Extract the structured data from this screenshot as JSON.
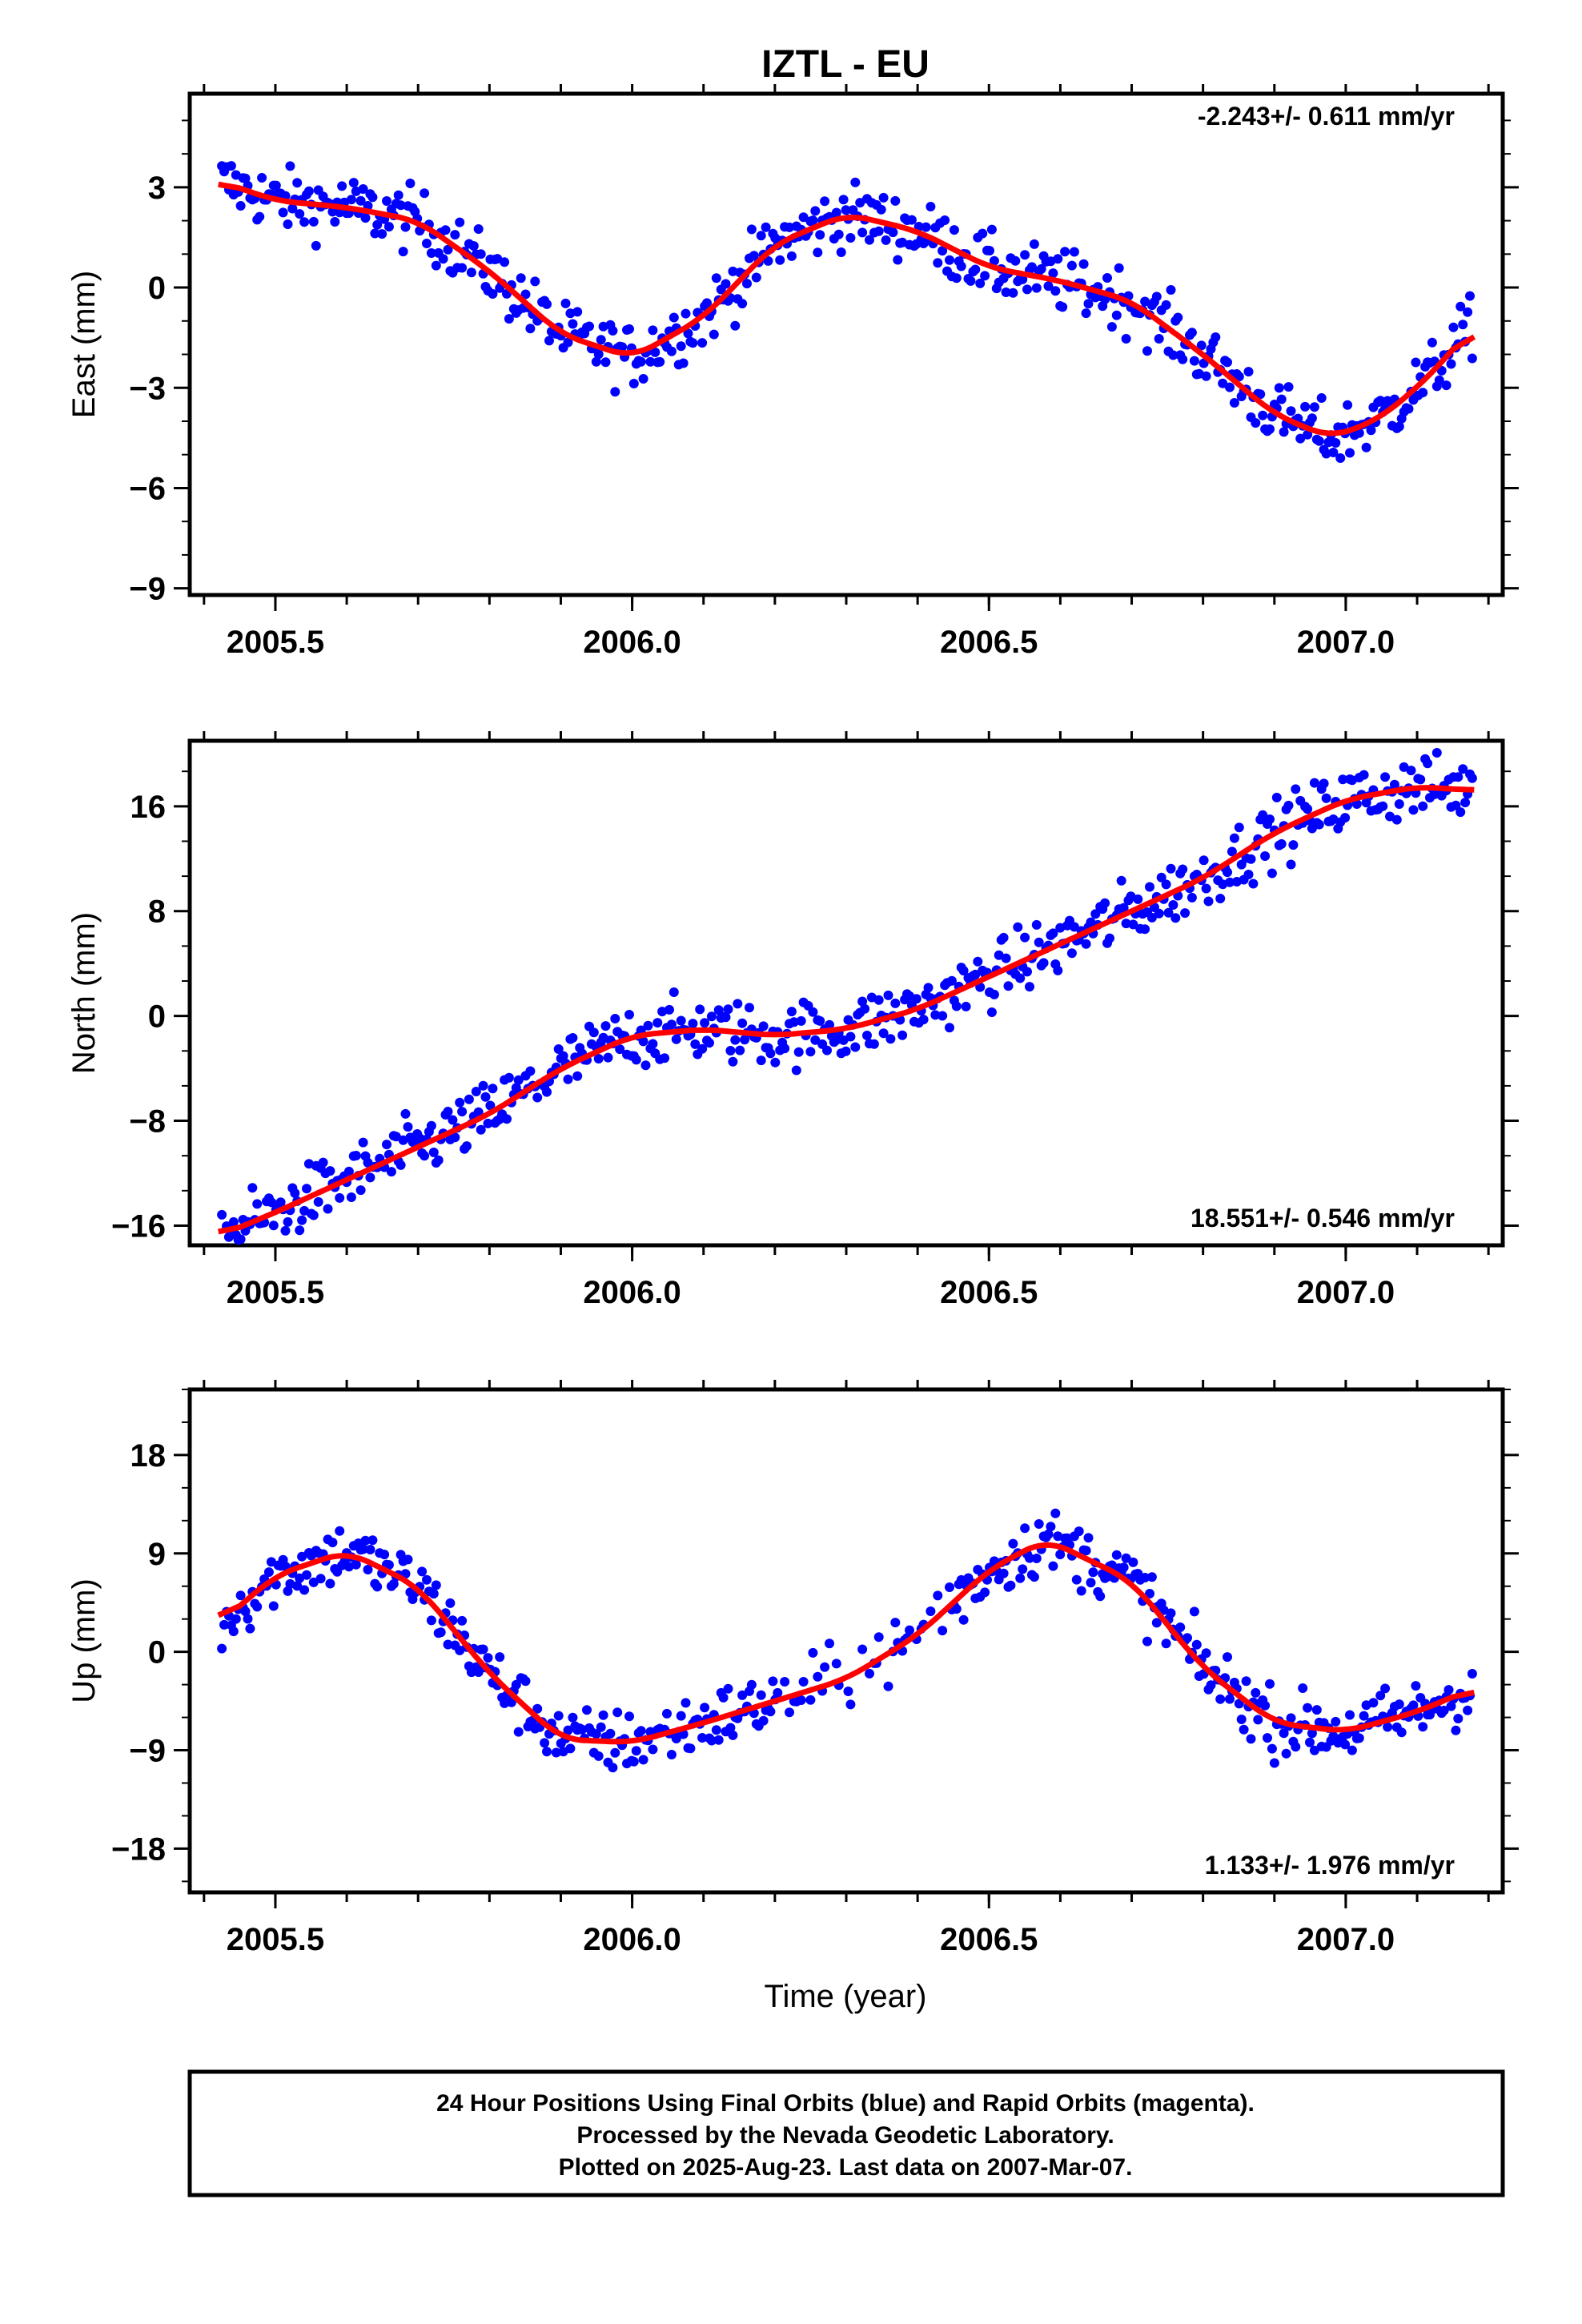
{
  "title": "IZTL - EU",
  "xlabel": "Time (year)",
  "colors": {
    "final_orbits": "#0000ff",
    "rapid_orbits": "#ff00ff",
    "model": "#ff0000",
    "frame": "#000000"
  },
  "footer": {
    "line1": "24 Hour Positions Using Final Orbits (blue) and Rapid Orbits (magenta).",
    "line2": "Processed by the Nevada Geodetic Laboratory.",
    "line3": "Plotted on 2025-Aug-23. Last data on 2007-Mar-07."
  },
  "chart_data": [
    {
      "type": "scatter",
      "ylabel": "East (mm)",
      "rate_label": "-2.243+/- 0.611 mm/yr",
      "xlim": [
        2005.38,
        2007.22
      ],
      "ylim": [
        -9.2,
        5.8
      ],
      "x_ticks": [
        "2005.5",
        "2006.0",
        "2006.5",
        "2007.0"
      ],
      "y_ticks": [
        "3",
        "0",
        "-3",
        "-6",
        "-9"
      ],
      "model_curve": [
        [
          2005.42,
          3.2
        ],
        [
          2005.5,
          2.6
        ],
        [
          2005.6,
          2.4
        ],
        [
          2005.7,
          2.0
        ],
        [
          2005.8,
          0.5
        ],
        [
          2005.9,
          -1.4
        ],
        [
          2006.0,
          -2.1
        ],
        [
          2006.1,
          -0.9
        ],
        [
          2006.2,
          1.3
        ],
        [
          2006.3,
          2.2
        ],
        [
          2006.4,
          1.7
        ],
        [
          2006.5,
          0.6
        ],
        [
          2006.6,
          0.2
        ],
        [
          2006.7,
          -0.4
        ],
        [
          2006.8,
          -2.0
        ],
        [
          2006.9,
          -3.8
        ],
        [
          2006.98,
          -4.5
        ],
        [
          2007.05,
          -3.9
        ],
        [
          2007.12,
          -2.6
        ],
        [
          2007.18,
          -1.1
        ]
      ]
    },
    {
      "type": "scatter",
      "ylabel": "North (mm)",
      "rate_label": "18.551+/- 0.546 mm/yr",
      "xlim": [
        2005.38,
        2007.22
      ],
      "ylim": [
        -17.5,
        21.0
      ],
      "x_ticks": [
        "2005.5",
        "2006.0",
        "2006.5",
        "2007.0"
      ],
      "y_ticks": [
        "16",
        "8",
        "0",
        "-8",
        "-16"
      ],
      "model_curve": [
        [
          2005.42,
          -16.8
        ],
        [
          2005.5,
          -15.0
        ],
        [
          2005.6,
          -12.5
        ],
        [
          2005.7,
          -10.0
        ],
        [
          2005.8,
          -7.5
        ],
        [
          2005.9,
          -4.0
        ],
        [
          2006.0,
          -1.5
        ],
        [
          2006.1,
          -1.0
        ],
        [
          2006.2,
          -1.5
        ],
        [
          2006.3,
          -1.0
        ],
        [
          2006.4,
          0.5
        ],
        [
          2006.5,
          3.0
        ],
        [
          2006.6,
          5.5
        ],
        [
          2006.7,
          8.0
        ],
        [
          2006.8,
          10.5
        ],
        [
          2006.9,
          14.0
        ],
        [
          2007.0,
          16.5
        ],
        [
          2007.1,
          17.5
        ],
        [
          2007.18,
          17.2
        ]
      ]
    },
    {
      "type": "scatter",
      "ylabel": "Up (mm)",
      "rate_label": "1.133+/- 1.976 mm/yr",
      "xlim": [
        2005.38,
        2007.22
      ],
      "ylim": [
        -22.0,
        24.0
      ],
      "x_ticks": [
        "2005.5",
        "2006.0",
        "2006.5",
        "2007.0"
      ],
      "y_ticks": [
        "18",
        "9",
        "0",
        "-9",
        "-18"
      ],
      "model_curve": [
        [
          2005.42,
          2.5
        ],
        [
          2005.5,
          7.0
        ],
        [
          2005.6,
          9.2
        ],
        [
          2005.7,
          6.0
        ],
        [
          2005.8,
          -2.0
        ],
        [
          2005.9,
          -8.0
        ],
        [
          2006.0,
          -8.3
        ],
        [
          2006.1,
          -6.5
        ],
        [
          2006.2,
          -4.5
        ],
        [
          2006.3,
          -2.5
        ],
        [
          2006.4,
          1.5
        ],
        [
          2006.5,
          7.5
        ],
        [
          2006.58,
          10.3
        ],
        [
          2006.7,
          6.5
        ],
        [
          2006.8,
          -1.5
        ],
        [
          2006.9,
          -6.5
        ],
        [
          2007.0,
          -7.3
        ],
        [
          2007.1,
          -5.5
        ],
        [
          2007.18,
          -3.3
        ]
      ]
    }
  ]
}
